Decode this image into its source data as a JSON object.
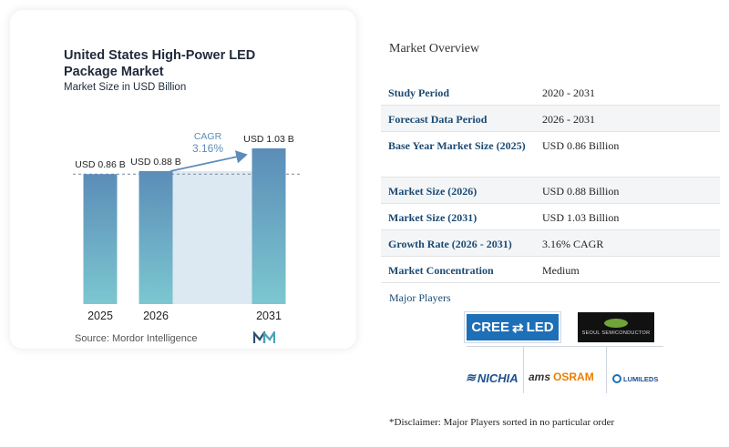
{
  "chart_data": {
    "type": "bar",
    "title": "United States High-Power LED Package Market",
    "subtitle": "Market Size in USD Billion",
    "categories": [
      "2025",
      "2026",
      "2031"
    ],
    "values": [
      0.86,
      0.88,
      1.03
    ],
    "data_labels": [
      "USD 0.86 B",
      "USD 0.88 B",
      "USD 1.03 B"
    ],
    "cagr_label": "CAGR",
    "cagr_value": "3.16%",
    "source": "Source: Mordor Intelligence",
    "ylim": [
      0,
      1.03
    ],
    "grid": false,
    "colors": {
      "bar_top": "#5b8db8",
      "bar_bottom": "#7cc7d0",
      "highlight_fill": "#dde9f2",
      "arrow": "#5b8db8",
      "cagr_text": "#5b8db8"
    }
  },
  "overview": {
    "title": "Market Overview",
    "rows": [
      {
        "label": "Study Period",
        "value": "2020 - 2031"
      },
      {
        "label": "Forecast Data Period",
        "value": "2026 - 2031"
      },
      {
        "label": "Base Year Market Size (2025)",
        "value": "USD 0.86 Billion"
      },
      {
        "label": "Market Size (2026)",
        "value": "USD 0.88 Billion"
      },
      {
        "label": "Market Size (2031)",
        "value": "USD 1.03 Billion"
      },
      {
        "label": "Growth Rate (2026 - 2031)",
        "value": "3.16% CAGR"
      },
      {
        "label": "Market Concentration",
        "value": "Medium"
      }
    ],
    "players_title": "Major Players",
    "players": {
      "cree_a": "CREE",
      "cree_b": "LED",
      "seoul": "SEOUL SEMICONDUCTOR",
      "nichia": "NICHIA",
      "ams": "ams",
      "osram": "OSRAM",
      "lumileds": "LUMILEDS"
    },
    "disclaimer": "*Disclaimer: Major Players sorted in no particular order"
  }
}
